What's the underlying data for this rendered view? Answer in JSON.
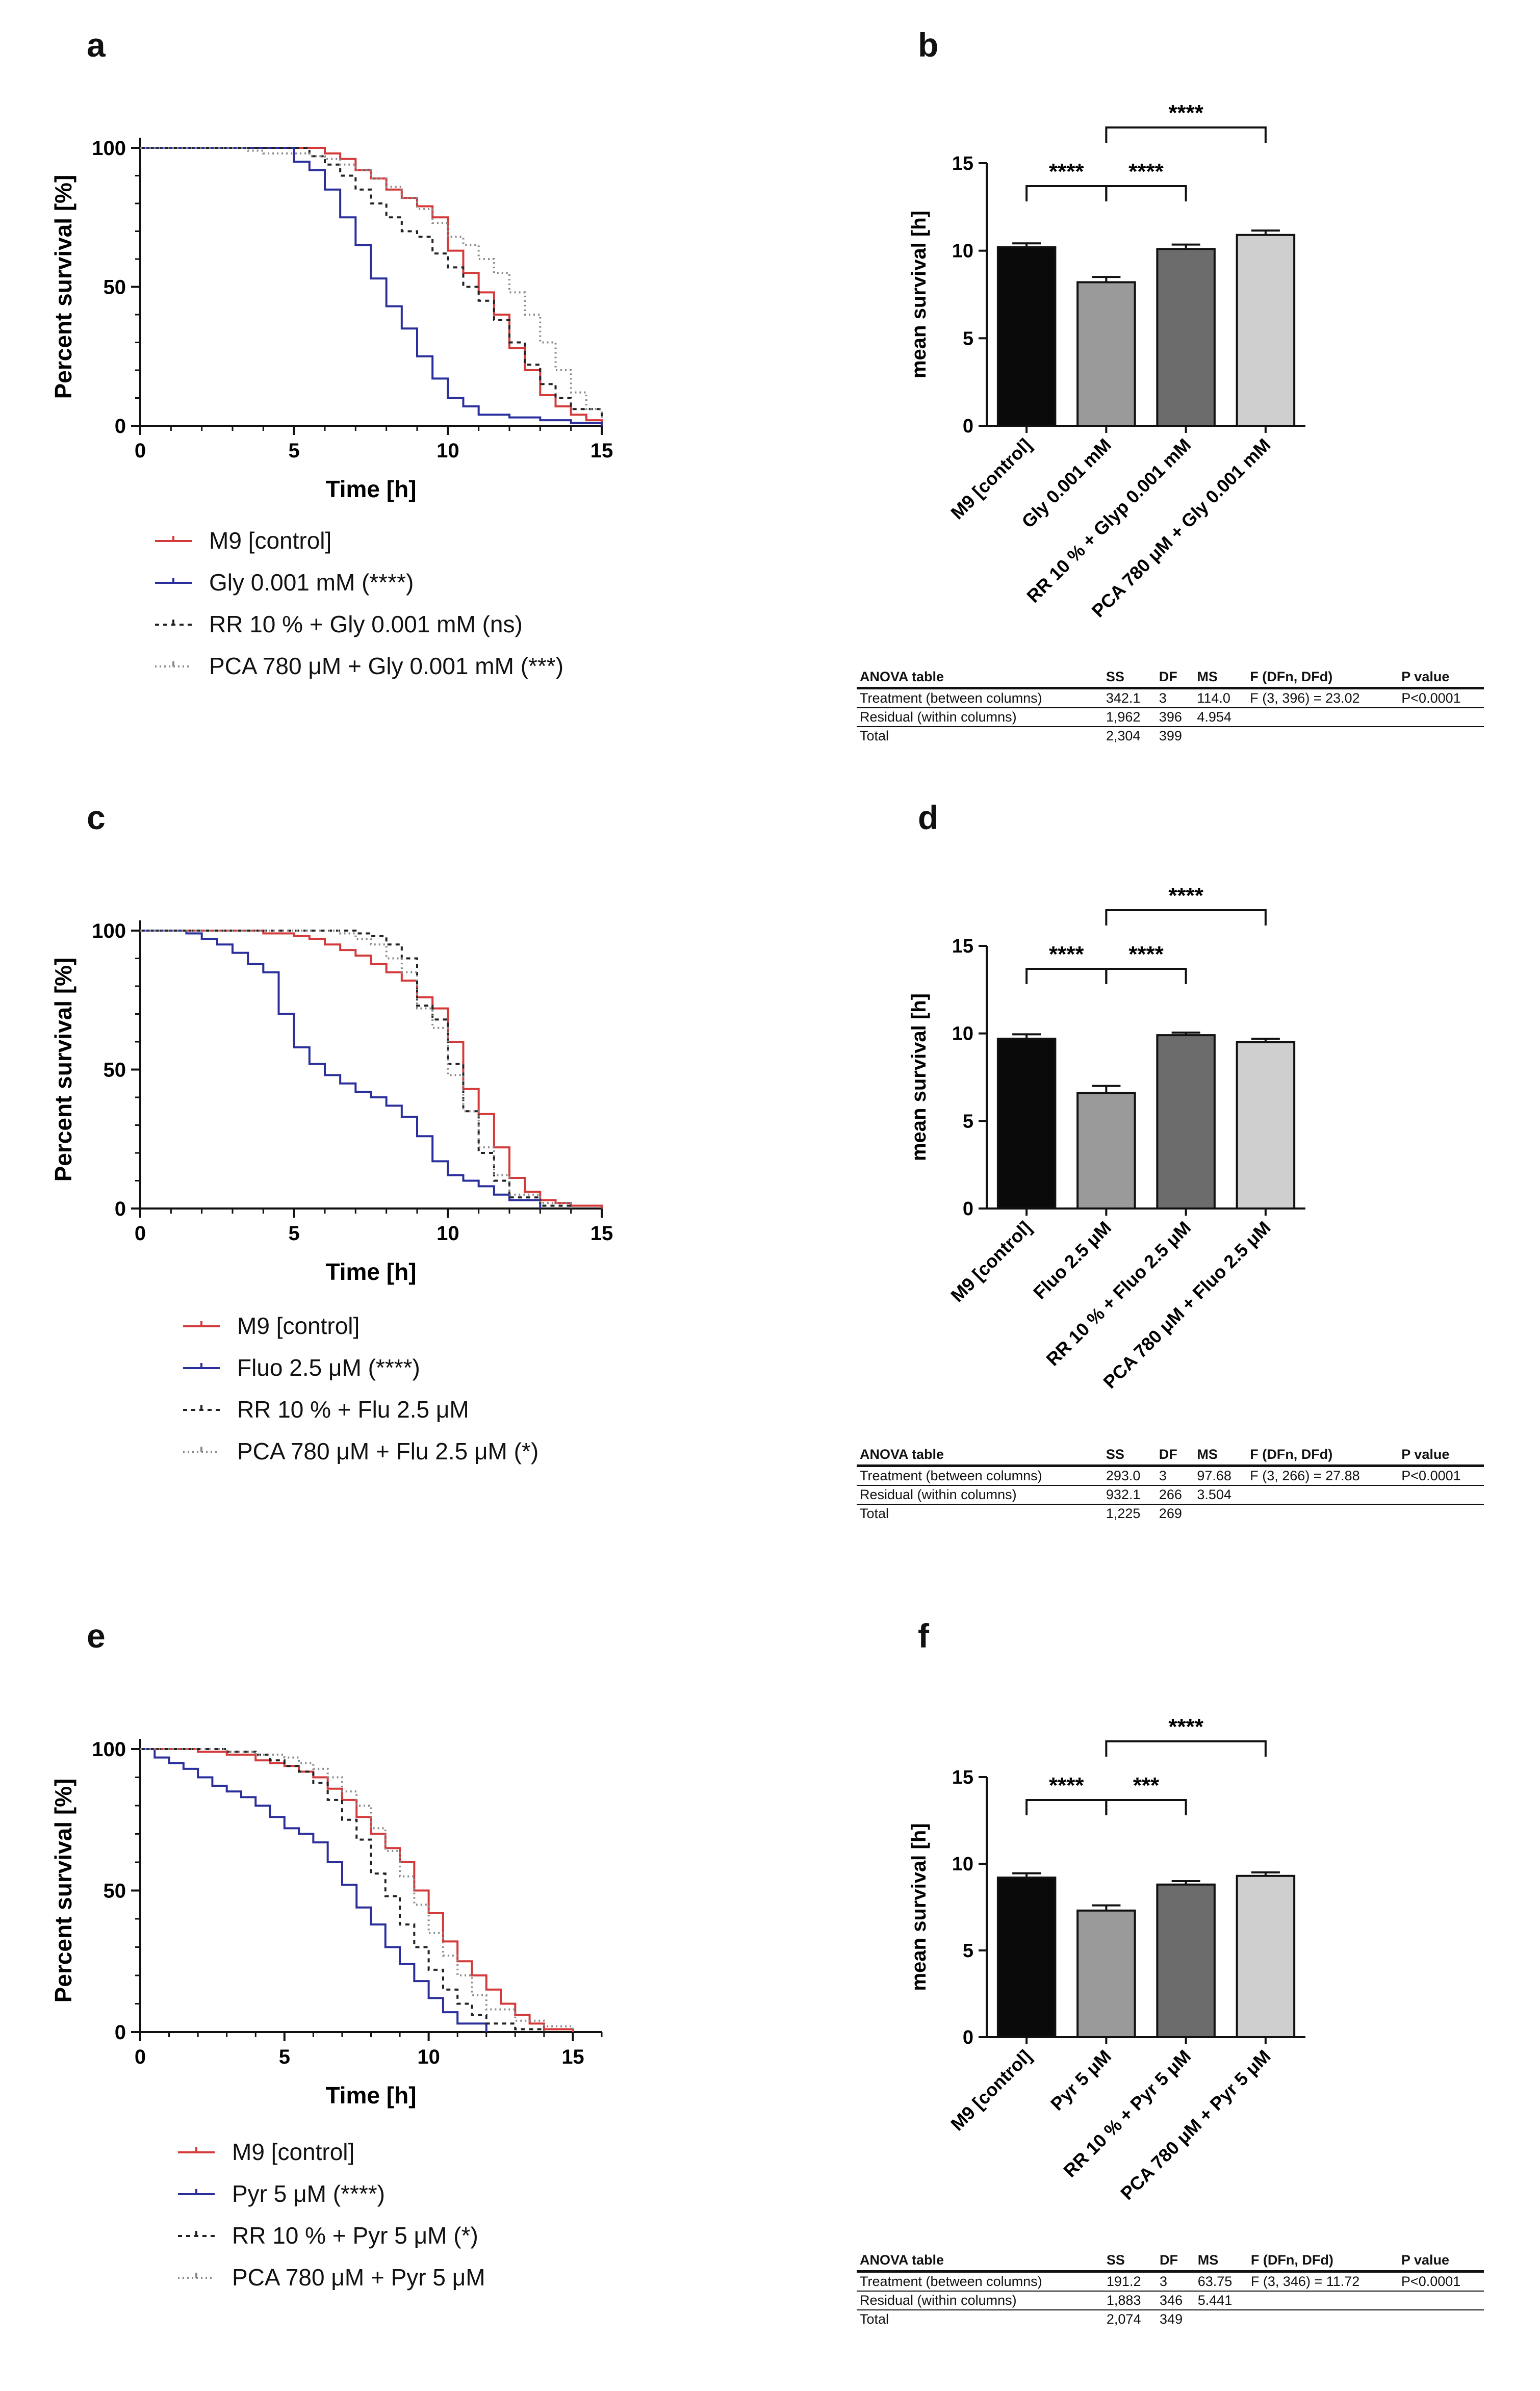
{
  "panel_letters": [
    "a",
    "b",
    "c",
    "d",
    "e",
    "f"
  ],
  "chart_data": [
    {
      "panel": "a",
      "type": "line",
      "xlabel": "Time [h]",
      "ylabel": "Percent survival [%]",
      "xlim": [
        0,
        15
      ],
      "ylim": [
        0,
        100
      ],
      "xticks": [
        0,
        5,
        10,
        15
      ],
      "yticks": [
        0,
        50,
        100
      ],
      "series": [
        {
          "name": "M9 [control]",
          "color": "#d43a3a",
          "dash": "solid",
          "x": [
            0,
            5.5,
            6,
            6.5,
            7,
            7.5,
            8,
            8.5,
            9,
            9.5,
            10,
            10.5,
            11,
            11.5,
            12,
            12.5,
            13,
            13.5,
            14,
            14.5,
            15
          ],
          "y": [
            100,
            100,
            98,
            96,
            92,
            89,
            85,
            82,
            79,
            75,
            63,
            55,
            48,
            40,
            28,
            20,
            11,
            7,
            4,
            2,
            0
          ]
        },
        {
          "name": "Gly 0.001 mM (****)",
          "color": "#2a2f9c",
          "dash": "solid",
          "x": [
            0,
            4.5,
            5,
            5.5,
            6,
            6.5,
            7,
            7.5,
            8,
            8.5,
            9,
            9.5,
            10,
            10.5,
            11,
            12,
            13,
            14,
            15
          ],
          "y": [
            100,
            100,
            95,
            92,
            85,
            75,
            65,
            53,
            43,
            35,
            25,
            17,
            10,
            7,
            4,
            3,
            2,
            1,
            0
          ]
        },
        {
          "name": "RR 10 % + Gly 0.001 mM (ns)",
          "color": "#222222",
          "dash": "8,8",
          "x": [
            0,
            5,
            5.5,
            6,
            6.5,
            7,
            7.5,
            8,
            8.5,
            9,
            9.5,
            10,
            10.5,
            11,
            11.5,
            12,
            12.5,
            13,
            13.5,
            14,
            15
          ],
          "y": [
            100,
            100,
            97,
            94,
            90,
            85,
            80,
            75,
            70,
            68,
            62,
            57,
            50,
            45,
            38,
            30,
            22,
            15,
            10,
            6,
            2
          ]
        },
        {
          "name": "PCA 780 μM + Gly 0.001 mM (***)",
          "color": "#8a8a8a",
          "dash": "3,6",
          "x": [
            0,
            3,
            3.5,
            4,
            5,
            5.5,
            6,
            6.5,
            7,
            7.5,
            8,
            8.5,
            9,
            9.5,
            10,
            10.5,
            11,
            11.5,
            12,
            12.5,
            13,
            13.5,
            14,
            14.5,
            15
          ],
          "y": [
            100,
            100,
            99,
            98,
            98,
            97,
            96,
            94,
            92,
            89,
            86,
            82,
            78,
            73,
            68,
            65,
            60,
            55,
            48,
            40,
            30,
            20,
            12,
            6,
            2
          ]
        }
      ]
    },
    {
      "panel": "b",
      "type": "bar",
      "ylabel": "mean survival [h]",
      "ylim": [
        0,
        15
      ],
      "yticks": [
        0,
        5,
        10,
        15
      ],
      "categories": [
        "M9 [control]",
        "Gly 0.001 mM",
        "RR 10 % + Glyp 0.001 mM",
        "PCA 780 μM + Gly 0.001 mM"
      ],
      "values": [
        10.2,
        8.2,
        10.1,
        10.9
      ],
      "errors": [
        0.22,
        0.3,
        0.25,
        0.25
      ],
      "colors": [
        "#0a0a0a",
        "#9a9a9a",
        "#6c6c6c",
        "#cfcfcf"
      ],
      "annotations": [
        {
          "from": 0,
          "to": 1,
          "text": "****"
        },
        {
          "from": 1,
          "to": 2,
          "text": "****"
        },
        {
          "from": 1,
          "to": 3,
          "text": "****"
        }
      ]
    },
    {
      "panel": "c",
      "type": "line",
      "xlabel": "Time [h]",
      "ylabel": "Percent survival [%]",
      "xlim": [
        0,
        15
      ],
      "ylim": [
        0,
        100
      ],
      "xticks": [
        0,
        5,
        10,
        15
      ],
      "yticks": [
        0,
        50,
        100
      ],
      "series": [
        {
          "name": "M9 [control]",
          "color": "#d43a3a",
          "dash": "solid",
          "x": [
            0,
            3.5,
            4,
            5,
            5.5,
            6,
            6.5,
            7,
            7.5,
            8,
            8.5,
            9,
            9.5,
            10,
            10.5,
            11,
            11.5,
            12,
            12.5,
            13,
            13.5,
            14,
            15
          ],
          "y": [
            100,
            100,
            99,
            98,
            97,
            95,
            93,
            91,
            88,
            85,
            82,
            76,
            72,
            60,
            43,
            34,
            22,
            11,
            6,
            3,
            2,
            1,
            0
          ]
        },
        {
          "name": "Fluo 2.5 μM (****)",
          "color": "#2a2f9c",
          "dash": "solid",
          "x": [
            0,
            1.5,
            2,
            2.5,
            3,
            3.5,
            4,
            4.5,
            5,
            5.5,
            6,
            6.5,
            7,
            7.5,
            8,
            8.5,
            9,
            9.5,
            10,
            10.5,
            11,
            11.5,
            12,
            13
          ],
          "y": [
            100,
            99,
            97,
            95,
            92,
            88,
            85,
            70,
            58,
            52,
            48,
            45,
            42,
            40,
            37,
            33,
            26,
            17,
            12,
            10,
            8,
            5,
            3,
            0
          ]
        },
        {
          "name": "RR 10 % + Flu 2.5 μM",
          "color": "#222222",
          "dash": "8,8",
          "x": [
            0,
            6,
            7,
            7.5,
            8,
            8.5,
            9,
            9.5,
            10,
            10.5,
            11,
            11.5,
            12,
            13,
            14
          ],
          "y": [
            100,
            100,
            99,
            98,
            95,
            90,
            73,
            68,
            52,
            35,
            20,
            10,
            4,
            1,
            0
          ]
        },
        {
          "name": "PCA 780 μM + Flu 2.5 μM (*)",
          "color": "#8a8a8a",
          "dash": "3,6",
          "x": [
            0,
            5.5,
            6.5,
            7,
            7.5,
            8,
            8.5,
            9,
            9.5,
            10,
            10.5,
            11,
            11.5,
            12,
            13,
            14
          ],
          "y": [
            100,
            100,
            99,
            97,
            95,
            90,
            85,
            72,
            65,
            48,
            35,
            22,
            12,
            5,
            2,
            0
          ]
        }
      ]
    },
    {
      "panel": "d",
      "type": "bar",
      "ylabel": "mean survival [h]",
      "ylim": [
        0,
        15
      ],
      "yticks": [
        0,
        5,
        10,
        15
      ],
      "categories": [
        "M9 [control]",
        "Fluo 2.5 μM",
        "RR 10 % + Fluo 2.5 μM",
        "PCA 780 μM + Fluo 2.5 μM"
      ],
      "values": [
        9.7,
        6.6,
        9.9,
        9.5
      ],
      "errors": [
        0.25,
        0.4,
        0.15,
        0.2
      ],
      "colors": [
        "#0a0a0a",
        "#9a9a9a",
        "#6c6c6c",
        "#cfcfcf"
      ],
      "annotations": [
        {
          "from": 0,
          "to": 1,
          "text": "****"
        },
        {
          "from": 1,
          "to": 2,
          "text": "****"
        },
        {
          "from": 1,
          "to": 3,
          "text": "****"
        }
      ]
    },
    {
      "panel": "e",
      "type": "line",
      "xlabel": "Time [h]",
      "ylabel": "Percent survival [%]",
      "xlim": [
        0,
        16
      ],
      "ylim": [
        0,
        100
      ],
      "xticks": [
        0,
        5,
        10,
        15
      ],
      "yticks": [
        0,
        50,
        100
      ],
      "series": [
        {
          "name": "M9 [control]",
          "color": "#d43a3a",
          "dash": "solid",
          "x": [
            0,
            1.5,
            2,
            3,
            4,
            4.5,
            5,
            5.5,
            6,
            6.5,
            7,
            7.5,
            8,
            8.5,
            9,
            9.5,
            10,
            10.5,
            11,
            11.5,
            12,
            12.5,
            13,
            13.5,
            14,
            15
          ],
          "y": [
            100,
            100,
            99,
            98,
            96,
            95,
            94,
            92,
            90,
            86,
            82,
            76,
            70,
            65,
            60,
            50,
            42,
            32,
            25,
            20,
            15,
            10,
            6,
            3,
            1,
            0
          ]
        },
        {
          "name": "Pyr 5 μM (****)",
          "color": "#2a2f9c",
          "dash": "solid",
          "x": [
            0,
            0.5,
            1,
            1.5,
            2,
            2.5,
            3,
            3.5,
            4,
            4.5,
            5,
            5.5,
            6,
            6.5,
            7,
            7.5,
            8,
            8.5,
            9,
            9.5,
            10,
            10.5,
            11,
            12
          ],
          "y": [
            100,
            97,
            95,
            93,
            90,
            87,
            85,
            83,
            80,
            76,
            72,
            70,
            67,
            60,
            52,
            44,
            38,
            30,
            24,
            18,
            12,
            7,
            3,
            0
          ]
        },
        {
          "name": "RR 10 % + Pyr 5 μM (*)",
          "color": "#222222",
          "dash": "8,8",
          "x": [
            0,
            2,
            3,
            4,
            4.5,
            5,
            5.5,
            6,
            6.5,
            7,
            7.5,
            8,
            8.5,
            9,
            9.5,
            10,
            10.5,
            11,
            11.5,
            12,
            13,
            14
          ],
          "y": [
            100,
            100,
            99,
            98,
            96,
            94,
            92,
            88,
            82,
            75,
            68,
            56,
            48,
            38,
            30,
            22,
            15,
            10,
            6,
            3,
            1,
            0
          ]
        },
        {
          "name": "PCA 780 μM + Pyr 5 μM",
          "color": "#8a8a8a",
          "dash": "3,6",
          "x": [
            0,
            2,
            3,
            4,
            5,
            5.5,
            6,
            6.5,
            7,
            7.5,
            8,
            8.5,
            9,
            9.5,
            10,
            10.5,
            11,
            11.5,
            12,
            13,
            14,
            15
          ],
          "y": [
            100,
            100,
            99,
            98,
            97,
            95,
            93,
            90,
            85,
            80,
            72,
            64,
            55,
            45,
            35,
            27,
            20,
            13,
            8,
            4,
            2,
            0
          ]
        }
      ]
    },
    {
      "panel": "f",
      "type": "bar",
      "ylabel": "mean survival [h]",
      "ylim": [
        0,
        15
      ],
      "yticks": [
        0,
        5,
        10,
        15
      ],
      "categories": [
        "M9 [control]",
        "Pyr 5 μM",
        "RR 10 % + Pyr 5 μM",
        "PCA 780 μM + Pyr 5 μM"
      ],
      "values": [
        9.2,
        7.3,
        8.8,
        9.3
      ],
      "errors": [
        0.25,
        0.3,
        0.2,
        0.2
      ],
      "colors": [
        "#0a0a0a",
        "#9a9a9a",
        "#6c6c6c",
        "#cfcfcf"
      ],
      "annotations": [
        {
          "from": 0,
          "to": 1,
          "text": "****"
        },
        {
          "from": 1,
          "to": 2,
          "text": "***"
        },
        {
          "from": 1,
          "to": 3,
          "text": "****"
        }
      ]
    }
  ],
  "anova_tables": [
    {
      "headers": [
        "ANOVA table",
        "SS",
        "DF",
        "MS",
        "F (DFn, DFd)",
        "P value"
      ],
      "rows": [
        [
          "Treatment (between columns)",
          "342.1",
          "3",
          "114.0",
          "F (3, 396) = 23.02",
          "P<0.0001"
        ],
        [
          "Residual (within columns)",
          "1,962",
          "396",
          "4.954",
          "",
          ""
        ],
        [
          "Total",
          "2,304",
          "399",
          "",
          "",
          ""
        ]
      ]
    },
    {
      "headers": [
        "ANOVA table",
        "SS",
        "DF",
        "MS",
        "F (DFn, DFd)",
        "P value"
      ],
      "rows": [
        [
          "Treatment (between columns)",
          "293.0",
          "3",
          "97.68",
          "F (3, 266) = 27.88",
          "P<0.0001"
        ],
        [
          "Residual (within columns)",
          "932.1",
          "266",
          "3.504",
          "",
          ""
        ],
        [
          "Total",
          "1,225",
          "269",
          "",
          "",
          ""
        ]
      ]
    },
    {
      "headers": [
        "ANOVA table",
        "SS",
        "DF",
        "MS",
        "F (DFn, DFd)",
        "P value"
      ],
      "rows": [
        [
          "Treatment (between columns)",
          "191.2",
          "3",
          "63.75",
          "F (3, 346) = 11.72",
          "P<0.0001"
        ],
        [
          "Residual (within columns)",
          "1,883",
          "346",
          "5.441",
          "",
          ""
        ],
        [
          "Total",
          "2,074",
          "349",
          "",
          "",
          ""
        ]
      ]
    }
  ]
}
